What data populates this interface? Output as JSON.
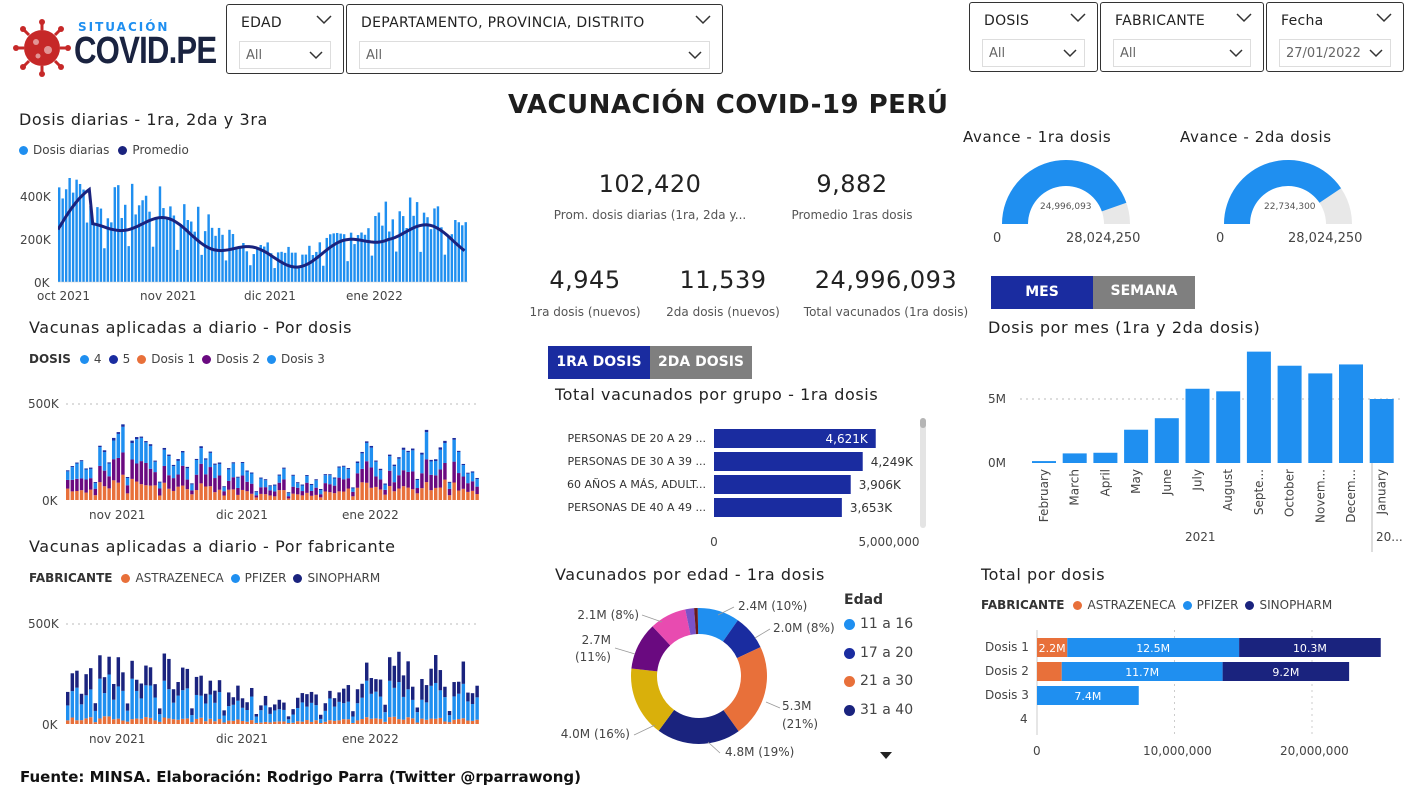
{
  "logo": {
    "top": "SITUACIÓN",
    "main": "COVID.PE"
  },
  "title": "VACUNACIÓN COVID-19 PERÚ",
  "filters": [
    {
      "label": "EDAD",
      "value": "All"
    },
    {
      "label": "DEPARTAMENTO, PROVINCIA, DISTRITO",
      "value": "All"
    },
    {
      "label": "DOSIS",
      "value": "All"
    },
    {
      "label": "FABRICANTE",
      "value": "All"
    },
    {
      "label": "Fecha",
      "value": "27/01/2022"
    }
  ],
  "colors": {
    "blue": "#1f8ff0",
    "navy": "#1a2ca0",
    "orange": "#e8703a",
    "purple": "#6a0a80",
    "darkblue": "#1a237e",
    "grey": "#7f7f7f"
  },
  "daily": {
    "title": "Dosis diarias - 1ra, 2da y 3ra",
    "legend": [
      "Dosis diarias",
      "Promedio"
    ],
    "yticks": [
      "400K",
      "200K",
      "0K"
    ],
    "xticks": [
      "oct 2021",
      "nov 2021",
      "dic 2021",
      "ene 2022"
    ]
  },
  "by_dose": {
    "title": "Vacunas aplicadas a diario - Por dosis",
    "legend_title": "DOSIS",
    "legend": [
      "4",
      "5",
      "Dosis 1",
      "Dosis 2",
      "Dosis 3"
    ],
    "yticks": [
      "500K",
      "0K"
    ],
    "xticks": [
      "nov 2021",
      "dic 2021",
      "ene 2022"
    ]
  },
  "by_maker": {
    "title": "Vacunas aplicadas a diario - Por fabricante",
    "legend_title": "FABRICANTE",
    "legend": [
      "ASTRAZENECA",
      "PFIZER",
      "SINOPHARM"
    ],
    "yticks": [
      "500K",
      "0K"
    ],
    "xticks": [
      "nov 2021",
      "dic 2021",
      "ene 2022"
    ]
  },
  "kpis": [
    {
      "value": "102,420",
      "label": "Prom. dosis diarias (1ra, 2da y..."
    },
    {
      "value": "9,882",
      "label": "Promedio 1ras dosis"
    },
    {
      "value": "4,945",
      "label": "1ra dosis (nuevos)"
    },
    {
      "value": "11,539",
      "label": "2da dosis (nuevos)"
    },
    {
      "value": "24,996,093",
      "label": "Total vacunados (1ra dosis)"
    }
  ],
  "gauges": [
    {
      "title": "Avance - 1ra dosis",
      "value": "24,996,093",
      "min": "0",
      "max": "28,024,250",
      "fraction": 0.892
    },
    {
      "title": "Avance - 2da dosis",
      "value": "22,734,300",
      "min": "0",
      "max": "28,024,250",
      "fraction": 0.811
    }
  ],
  "toggles": {
    "mes": "MES",
    "semana": "SEMANA",
    "dose1": "1RA DOSIS",
    "dose2": "2DA DOSIS"
  },
  "group_chart": {
    "title": "Total vacunados por grupo - 1ra dosis",
    "categories": [
      "PERSONAS DE 20 A 29 ...",
      "PERSONAS DE 30 A 39 ...",
      "60 AÑOS A MÁS, ADULT...",
      "PERSONAS DE 40 A 49 ..."
    ],
    "labels": [
      "4,621K",
      "4,249K",
      "3,906K",
      "3,653K"
    ],
    "xticks": [
      "0",
      "5,000,000"
    ]
  },
  "donut": {
    "title": "Vacunados por edad - 1ra dosis",
    "legend_title": "Edad",
    "legend": [
      "11 a 16",
      "17 a 20",
      "21 a 30",
      "31 a 40"
    ],
    "labels": [
      "2.4M (10%)",
      "2.0M (8%)",
      "5.3M",
      "(21%)",
      "4.8M (19%)",
      "4.0M (16%)",
      "2.7M",
      "(11%)",
      "2.1M (8%)"
    ]
  },
  "monthly": {
    "title": "Dosis por mes (1ra y 2da dosis)",
    "yticks": [
      "5M",
      "0M"
    ],
    "months": [
      "February",
      "March",
      "April",
      "May",
      "June",
      "July",
      "August",
      "Septe...",
      "October",
      "Novem...",
      "Decem...",
      "January"
    ],
    "years": [
      "2021",
      "20..."
    ]
  },
  "total_dose": {
    "title": "Total por dosis",
    "legend_title": "FABRICANTE",
    "legend": [
      "ASTRAZENECA",
      "PFIZER",
      "SINOPHARM"
    ],
    "rows": [
      "Dosis 1",
      "Dosis 2",
      "Dosis 3",
      "4"
    ],
    "labels": [
      "2.2M",
      "12.5M",
      "10.3M",
      "11.7M",
      "9.2M",
      "7.4M"
    ],
    "xticks": [
      "0",
      "10,000,000",
      "20,000,000"
    ]
  },
  "chart_data": [
    {
      "type": "bar",
      "title": "Total vacunados por grupo - 1ra dosis",
      "categories": [
        "PERSONAS DE 20 A 29 ...",
        "PERSONAS DE 30 A 39 ...",
        "60 AÑOS A MÁS, ADULT...",
        "PERSONAS DE 40 A 49 ..."
      ],
      "values": [
        4621000,
        4249000,
        3906000,
        3653000
      ],
      "xlim": [
        0,
        5000000
      ]
    },
    {
      "type": "pie",
      "title": "Vacunados por edad - 1ra dosis",
      "values": [
        2.4,
        2.0,
        5.3,
        4.8,
        4.0,
        2.7,
        2.1,
        0.5,
        0.2
      ],
      "units": "M",
      "colors": [
        "#1f8ff0",
        "#1a2ca0",
        "#e8703a",
        "#1a237e",
        "#d9b00b",
        "#6a0a80",
        "#e84bb0",
        "#7a52c8",
        "#6b1a1a"
      ]
    },
    {
      "type": "bar",
      "title": "Dosis por mes (1ra y 2da dosis)",
      "categories": [
        "February",
        "March",
        "April",
        "May",
        "June",
        "July",
        "August",
        "Septe...",
        "October",
        "Novem...",
        "Decem...",
        "January"
      ],
      "values": [
        0.15,
        0.75,
        0.8,
        2.6,
        3.5,
        5.8,
        5.6,
        8.7,
        7.6,
        7.0,
        7.7,
        5.0
      ],
      "units": "M"
    },
    {
      "type": "bar",
      "title": "Total por dosis",
      "categories": [
        "Dosis 1",
        "Dosis 2",
        "Dosis 3"
      ],
      "series": [
        {
          "name": "ASTRAZENECA",
          "values": [
            2.2,
            1.8,
            0
          ]
        },
        {
          "name": "PFIZER",
          "values": [
            12.5,
            11.7,
            7.4
          ]
        },
        {
          "name": "SINOPHARM",
          "values": [
            10.3,
            9.2,
            0
          ]
        }
      ],
      "units": "M"
    }
  ]
}
